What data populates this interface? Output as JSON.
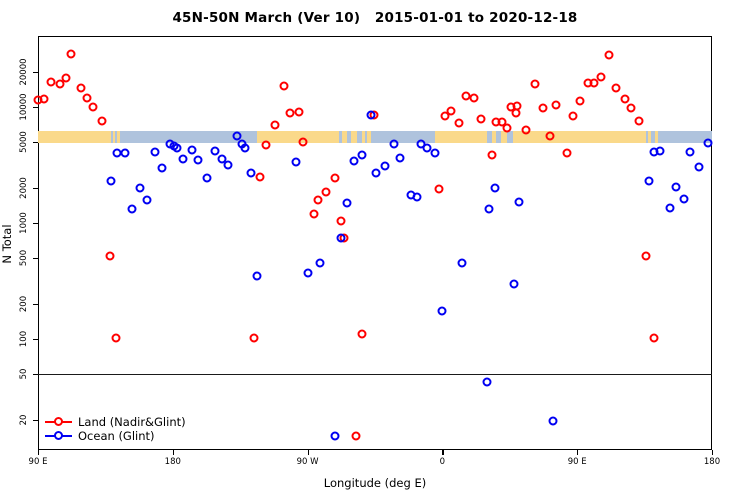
{
  "title": "45N-50N March (Ver 10)   2015-01-01 to 2020-12-18",
  "x_axis": {
    "label": "Longitude (deg E)",
    "ticks": [
      {
        "lon": 90,
        "label": "90 E"
      },
      {
        "lon": 180,
        "label": "180"
      },
      {
        "lon": 270,
        "label": "90 W"
      },
      {
        "lon": 360,
        "label": "0"
      },
      {
        "lon": 450,
        "label": "90 E"
      },
      {
        "lon": 540,
        "label": "180"
      }
    ]
  },
  "y_axis": {
    "label": "N Total",
    "scale": "log",
    "ticks": [
      {
        "value": 20000,
        "label": "20000"
      },
      {
        "value": 10000,
        "label": "10000"
      },
      {
        "value": 5000,
        "label": "5000"
      },
      {
        "value": 2000,
        "label": "2000"
      },
      {
        "value": 1000,
        "label": "1000"
      },
      {
        "value": 500,
        "label": "500"
      },
      {
        "value": 200,
        "label": "200"
      },
      {
        "value": 100,
        "label": "100"
      },
      {
        "value": 50,
        "label": "50"
      },
      {
        "value": 20,
        "label": "20"
      }
    ]
  },
  "colors": {
    "land": "#ff0000",
    "ocean": "#0000f2",
    "strip_land": "#fad98a",
    "strip_ocean": "#afc3dd",
    "reference_line": "#1a1a1a"
  },
  "reference_line_value": 50,
  "map_strip": {
    "description": "land/ocean strip along 45N-50N vs longitude",
    "segments": [
      {
        "from": 90,
        "to": 139,
        "type": "land"
      },
      {
        "from": 139,
        "to": 236,
        "type": "ocean"
      },
      {
        "from": 236,
        "to": 312,
        "type": "land"
      },
      {
        "from": 312,
        "to": 355,
        "type": "ocean"
      },
      {
        "from": 355,
        "to": 496,
        "type": "land"
      },
      {
        "from": 496,
        "to": 540,
        "type": "ocean"
      },
      {
        "from": 140,
        "to": 141.5,
        "type": "land"
      },
      {
        "from": 143,
        "to": 145,
        "type": "land"
      },
      {
        "from": 291,
        "to": 293,
        "type": "ocean"
      },
      {
        "from": 296,
        "to": 299,
        "type": "ocean"
      },
      {
        "from": 303,
        "to": 306,
        "type": "ocean"
      },
      {
        "from": 308,
        "to": 310,
        "type": "ocean"
      },
      {
        "from": 390,
        "to": 393,
        "type": "ocean"
      },
      {
        "from": 396,
        "to": 399,
        "type": "ocean"
      },
      {
        "from": 403,
        "to": 407,
        "type": "ocean"
      },
      {
        "from": 497,
        "to": 499,
        "type": "land"
      },
      {
        "from": 502,
        "to": 504,
        "type": "land"
      }
    ]
  },
  "legend": {
    "items": [
      {
        "label": "Land (Nadir&Glint)",
        "series": "land"
      },
      {
        "label": "Ocean (Glint)",
        "series": "ocean"
      }
    ]
  },
  "chart_data": {
    "type": "scatter",
    "title": "45N-50N March (Ver 10)   2015-01-01 to 2020-12-18",
    "xlabel": "Longitude (deg E)",
    "ylabel": "N Total",
    "x_mode": "longitude wrapped 90E->180->90W->0->90E->180 (stored 90..540 deg)",
    "xlim": [
      90,
      540
    ],
    "ylim": [
      11,
      34000
    ],
    "yscale": "log",
    "grid": false,
    "legend_position": "bottom-left",
    "series": [
      {
        "name": "Land (Nadir&Glint)",
        "color": "#ff0000",
        "points": [
          [
            112,
            28700
          ],
          [
            99,
            16400
          ],
          [
            105,
            15800
          ],
          [
            109,
            17800
          ],
          [
            94,
            11700
          ],
          [
            90,
            11500
          ],
          [
            119,
            14600
          ],
          [
            123,
            12000
          ],
          [
            127,
            10000
          ],
          [
            133,
            7600
          ],
          [
            254,
            15200
          ],
          [
            258,
            8900
          ],
          [
            264,
            9100
          ],
          [
            248,
            7000
          ],
          [
            267,
            5000
          ],
          [
            242,
            4700
          ],
          [
            238,
            2500
          ],
          [
            288,
            2470
          ],
          [
            277,
            1580
          ],
          [
            282,
            1850
          ],
          [
            274,
            1200
          ],
          [
            292,
            1040
          ],
          [
            294,
            740
          ],
          [
            138,
            520
          ],
          [
            471,
            28100
          ],
          [
            466,
            18200
          ],
          [
            457,
            16100
          ],
          [
            461,
            16100
          ],
          [
            476,
            14600
          ],
          [
            482,
            11700
          ],
          [
            486,
            9800
          ],
          [
            491,
            7600
          ],
          [
            422,
            15800
          ],
          [
            436,
            10400
          ],
          [
            427,
            9800
          ],
          [
            452,
            11300
          ],
          [
            447,
            8400
          ],
          [
            376,
            12500
          ],
          [
            381,
            12000
          ],
          [
            362,
            8400
          ],
          [
            366,
            9250
          ],
          [
            371,
            7300
          ],
          [
            386,
            7900
          ],
          [
            396,
            7440
          ],
          [
            400,
            7440
          ],
          [
            403,
            6600
          ],
          [
            406,
            10000
          ],
          [
            410,
            10200
          ],
          [
            409,
            8900
          ],
          [
            416,
            6350
          ],
          [
            432,
            5630
          ],
          [
            443,
            4000
          ],
          [
            393,
            3860
          ],
          [
            358,
            1970
          ],
          [
            314,
            8540
          ],
          [
            142,
            103
          ],
          [
            234,
            103
          ],
          [
            306,
            111
          ],
          [
            302,
            14.7
          ],
          [
            496,
            520
          ],
          [
            501,
            103
          ]
        ]
      },
      {
        "name": "Ocean (Glint)",
        "color": "#0000f2",
        "points": [
          [
            143,
            4010
          ],
          [
            148,
            4010
          ],
          [
            139,
            2320
          ],
          [
            158,
            2010
          ],
          [
            163,
            1580
          ],
          [
            153,
            1320
          ],
          [
            168,
            4090
          ],
          [
            173,
            2990
          ],
          [
            178,
            4810
          ],
          [
            181,
            4620
          ],
          [
            183,
            4440
          ],
          [
            187,
            3570
          ],
          [
            193,
            4270
          ],
          [
            197,
            3500
          ],
          [
            203,
            2470
          ],
          [
            208,
            4180
          ],
          [
            213,
            3570
          ],
          [
            217,
            3160
          ],
          [
            223,
            5630
          ],
          [
            226,
            4810
          ],
          [
            228,
            4440
          ],
          [
            232,
            2700
          ],
          [
            312,
            8540
          ],
          [
            301,
            3430
          ],
          [
            306,
            3860
          ],
          [
            296,
            1490
          ],
          [
            292,
            740
          ],
          [
            262,
            3360
          ],
          [
            328,
            4810
          ],
          [
            346,
            4810
          ],
          [
            350,
            4440
          ],
          [
            355,
            4010
          ],
          [
            322,
            3100
          ],
          [
            332,
            3640
          ],
          [
            316,
            2700
          ],
          [
            339,
            1750
          ],
          [
            343,
            1680
          ],
          [
            395,
            2010
          ],
          [
            411,
            1520
          ],
          [
            391,
            1320
          ],
          [
            501,
            4090
          ],
          [
            505,
            4180
          ],
          [
            525,
            4090
          ],
          [
            537,
            4900
          ],
          [
            531,
            3040
          ],
          [
            498,
            2320
          ],
          [
            516,
            2060
          ],
          [
            521,
            1620
          ],
          [
            512,
            1350
          ],
          [
            236,
            350
          ],
          [
            270,
            370
          ],
          [
            278,
            455
          ],
          [
            288,
            14.7
          ],
          [
            373,
            455
          ],
          [
            408,
            300
          ],
          [
            360,
            175
          ],
          [
            390,
            43
          ],
          [
            434,
            19.8
          ]
        ]
      }
    ]
  }
}
